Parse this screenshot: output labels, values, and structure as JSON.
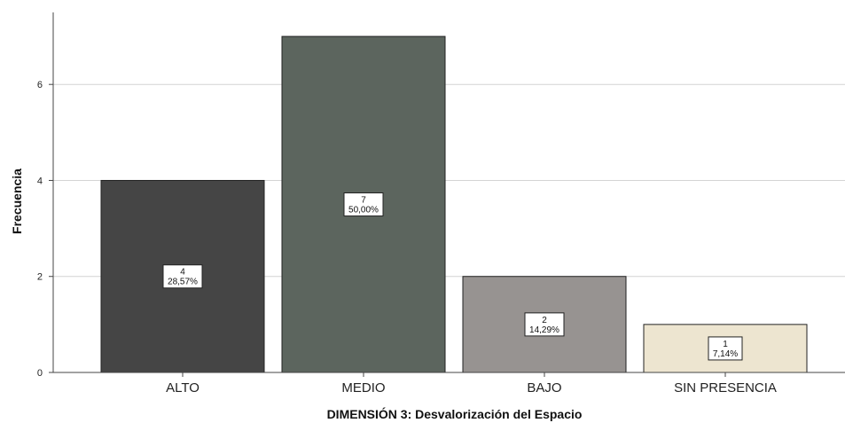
{
  "chart_data": {
    "type": "bar",
    "title": "",
    "xlabel": "DIMENSIÓN 3: Desvalorización del Espacio",
    "ylabel": "Frecuencia",
    "ylim": [
      0,
      7.5
    ],
    "yticks": [
      "0",
      "2",
      "4",
      "6"
    ],
    "grid": true,
    "categories": [
      "ALTO",
      "MEDIO",
      "BAJO",
      "SIN PRESENCIA"
    ],
    "values": [
      4,
      7,
      2,
      1
    ],
    "data_labels": [
      {
        "count": "4",
        "percent": "28,57%"
      },
      {
        "count": "7",
        "percent": "50,00%"
      },
      {
        "count": "2",
        "percent": "14,29%"
      },
      {
        "count": "1",
        "percent": "7,14%"
      }
    ],
    "colors": [
      "#454545",
      "#5c655e",
      "#979391",
      "#ede5d0"
    ]
  }
}
